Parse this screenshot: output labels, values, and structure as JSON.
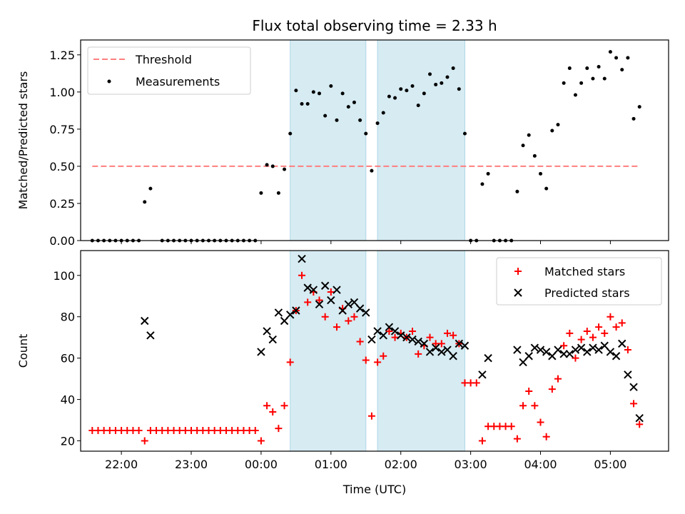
{
  "title": "Flux total observing time = 2.33 h",
  "xlabel": "Time (UTC)",
  "chart_data": [
    {
      "type": "scatter",
      "ylabel": "Matched/Predicted stars",
      "ylim": [
        0,
        1.35
      ],
      "xlim": [
        "21:25",
        "05:50"
      ],
      "yticks": [
        "0.00",
        "0.25",
        "0.50",
        "0.75",
        "1.00",
        "1.25"
      ],
      "legend": {
        "placement": "top-left",
        "entries": [
          "Threshold",
          "Measurements"
        ]
      },
      "threshold": {
        "name": "Threshold",
        "value": 0.5,
        "x_range": [
          "21:35",
          "05:25"
        ],
        "color": "#ff7f7f",
        "style": "dashed"
      },
      "shaded_spans": [
        [
          "00:25",
          "01:30"
        ],
        [
          "01:40",
          "02:55"
        ]
      ],
      "series": [
        {
          "name": "Measurements",
          "color": "#000000",
          "marker": "dot",
          "points": [
            [
              "21:35",
              0
            ],
            [
              "21:40",
              0
            ],
            [
              "21:45",
              0
            ],
            [
              "21:50",
              0
            ],
            [
              "21:55",
              0
            ],
            [
              "22:00",
              0
            ],
            [
              "22:05",
              0
            ],
            [
              "22:10",
              0
            ],
            [
              "22:15",
              0
            ],
            [
              "22:20",
              0.26
            ],
            [
              "22:25",
              0.35
            ],
            [
              "22:35",
              0
            ],
            [
              "22:40",
              0
            ],
            [
              "22:45",
              0
            ],
            [
              "22:50",
              0
            ],
            [
              "22:55",
              0
            ],
            [
              "23:00",
              0
            ],
            [
              "23:05",
              0
            ],
            [
              "23:10",
              0
            ],
            [
              "23:15",
              0
            ],
            [
              "23:20",
              0
            ],
            [
              "23:25",
              0
            ],
            [
              "23:30",
              0
            ],
            [
              "23:35",
              0
            ],
            [
              "23:40",
              0
            ],
            [
              "23:45",
              0
            ],
            [
              "23:50",
              0
            ],
            [
              "23:55",
              0
            ],
            [
              "00:00",
              0.32
            ],
            [
              "00:05",
              0.51
            ],
            [
              "00:10",
              0.5
            ],
            [
              "00:15",
              0.32
            ],
            [
              "00:20",
              0.48
            ],
            [
              "00:25",
              0.72
            ],
            [
              "00:30",
              1.01
            ],
            [
              "00:35",
              0.92
            ],
            [
              "00:40",
              0.92
            ],
            [
              "00:45",
              1.0
            ],
            [
              "00:50",
              0.99
            ],
            [
              "00:55",
              0.84
            ],
            [
              "01:00",
              1.04
            ],
            [
              "01:05",
              0.81
            ],
            [
              "01:10",
              0.99
            ],
            [
              "01:15",
              0.9
            ],
            [
              "01:20",
              0.93
            ],
            [
              "01:25",
              0.81
            ],
            [
              "01:30",
              0.72
            ],
            [
              "01:35",
              0.47
            ],
            [
              "01:40",
              0.79
            ],
            [
              "01:45",
              0.86
            ],
            [
              "01:50",
              0.97
            ],
            [
              "01:55",
              0.96
            ],
            [
              "02:00",
              1.02
            ],
            [
              "02:05",
              1.01
            ],
            [
              "02:10",
              1.04
            ],
            [
              "02:15",
              0.91
            ],
            [
              "02:20",
              0.99
            ],
            [
              "02:25",
              1.12
            ],
            [
              "02:30",
              1.05
            ],
            [
              "02:35",
              1.06
            ],
            [
              "02:40",
              1.1
            ],
            [
              "02:45",
              1.16
            ],
            [
              "02:50",
              1.02
            ],
            [
              "02:55",
              0.72
            ],
            [
              "03:00",
              0
            ],
            [
              "03:05",
              0
            ],
            [
              "03:10",
              0.38
            ],
            [
              "03:15",
              0.45
            ],
            [
              "03:20",
              0
            ],
            [
              "03:25",
              0
            ],
            [
              "03:30",
              0
            ],
            [
              "03:35",
              0
            ],
            [
              "03:40",
              0.33
            ],
            [
              "03:45",
              0.64
            ],
            [
              "03:50",
              0.71
            ],
            [
              "03:55",
              0.57
            ],
            [
              "04:00",
              0.45
            ],
            [
              "04:05",
              0.35
            ],
            [
              "04:10",
              0.74
            ],
            [
              "04:15",
              0.78
            ],
            [
              "04:20",
              1.06
            ],
            [
              "04:25",
              1.16
            ],
            [
              "04:30",
              0.98
            ],
            [
              "04:35",
              1.06
            ],
            [
              "04:40",
              1.16
            ],
            [
              "04:45",
              1.09
            ],
            [
              "04:50",
              1.17
            ],
            [
              "04:55",
              1.09
            ],
            [
              "05:00",
              1.27
            ],
            [
              "05:05",
              1.23
            ],
            [
              "05:10",
              1.15
            ],
            [
              "05:15",
              1.23
            ],
            [
              "05:20",
              0.82
            ],
            [
              "05:25",
              0.9
            ]
          ]
        }
      ]
    },
    {
      "type": "scatter",
      "ylabel": "Count",
      "ylim": [
        15,
        112
      ],
      "xlim": [
        "21:25",
        "05:50"
      ],
      "yticks": [
        "20",
        "40",
        "60",
        "80",
        "100"
      ],
      "xticks": [
        "22:00",
        "23:00",
        "00:00",
        "01:00",
        "02:00",
        "03:00",
        "04:00",
        "05:00"
      ],
      "legend": {
        "placement": "top-right",
        "entries": [
          "Matched stars",
          "Predicted stars"
        ]
      },
      "shaded_spans": [
        [
          "00:25",
          "01:30"
        ],
        [
          "01:40",
          "02:55"
        ]
      ],
      "series": [
        {
          "name": "Matched stars",
          "color": "#ff0000",
          "marker": "plus",
          "points": [
            [
              "21:35",
              25
            ],
            [
              "21:40",
              25
            ],
            [
              "21:45",
              25
            ],
            [
              "21:50",
              25
            ],
            [
              "21:55",
              25
            ],
            [
              "22:00",
              25
            ],
            [
              "22:05",
              25
            ],
            [
              "22:10",
              25
            ],
            [
              "22:15",
              25
            ],
            [
              "22:20",
              20
            ],
            [
              "22:25",
              25
            ],
            [
              "22:30",
              25
            ],
            [
              "22:35",
              25
            ],
            [
              "22:40",
              25
            ],
            [
              "22:45",
              25
            ],
            [
              "22:50",
              25
            ],
            [
              "22:55",
              25
            ],
            [
              "23:00",
              25
            ],
            [
              "23:05",
              25
            ],
            [
              "23:10",
              25
            ],
            [
              "23:15",
              25
            ],
            [
              "23:20",
              25
            ],
            [
              "23:25",
              25
            ],
            [
              "23:30",
              25
            ],
            [
              "23:35",
              25
            ],
            [
              "23:40",
              25
            ],
            [
              "23:45",
              25
            ],
            [
              "23:50",
              25
            ],
            [
              "23:55",
              25
            ],
            [
              "00:00",
              20
            ],
            [
              "00:05",
              37
            ],
            [
              "00:10",
              34
            ],
            [
              "00:15",
              26
            ],
            [
              "00:20",
              37
            ],
            [
              "00:25",
              58
            ],
            [
              "00:30",
              83
            ],
            [
              "00:35",
              100
            ],
            [
              "00:40",
              87
            ],
            [
              "00:45",
              92
            ],
            [
              "00:50",
              88
            ],
            [
              "00:55",
              80
            ],
            [
              "01:00",
              92
            ],
            [
              "01:05",
              75
            ],
            [
              "01:10",
              84
            ],
            [
              "01:15",
              78
            ],
            [
              "01:20",
              80
            ],
            [
              "01:25",
              68
            ],
            [
              "01:30",
              59
            ],
            [
              "01:35",
              32
            ],
            [
              "01:40",
              58
            ],
            [
              "01:45",
              61
            ],
            [
              "01:50",
              73
            ],
            [
              "01:55",
              70
            ],
            [
              "02:00",
              72
            ],
            [
              "02:05",
              70
            ],
            [
              "02:10",
              73
            ],
            [
              "02:15",
              62
            ],
            [
              "02:20",
              66
            ],
            [
              "02:25",
              70
            ],
            [
              "02:30",
              67
            ],
            [
              "02:35",
              67
            ],
            [
              "02:40",
              72
            ],
            [
              "02:45",
              71
            ],
            [
              "02:50",
              67
            ],
            [
              "02:55",
              48
            ],
            [
              "03:00",
              48
            ],
            [
              "03:05",
              48
            ],
            [
              "03:10",
              20
            ],
            [
              "03:15",
              27
            ],
            [
              "03:20",
              27
            ],
            [
              "03:25",
              27
            ],
            [
              "03:30",
              27
            ],
            [
              "03:35",
              27
            ],
            [
              "03:40",
              21
            ],
            [
              "03:45",
              37
            ],
            [
              "03:50",
              44
            ],
            [
              "03:55",
              37
            ],
            [
              "04:00",
              29
            ],
            [
              "04:05",
              22
            ],
            [
              "04:10",
              45
            ],
            [
              "04:15",
              50
            ],
            [
              "04:20",
              66
            ],
            [
              "04:25",
              72
            ],
            [
              "04:30",
              60
            ],
            [
              "04:35",
              69
            ],
            [
              "04:40",
              73
            ],
            [
              "04:45",
              70
            ],
            [
              "04:50",
              75
            ],
            [
              "04:55",
              72
            ],
            [
              "05:00",
              80
            ],
            [
              "05:05",
              75
            ],
            [
              "05:10",
              77
            ],
            [
              "05:15",
              64
            ],
            [
              "05:20",
              38
            ],
            [
              "05:25",
              28
            ]
          ]
        },
        {
          "name": "Predicted stars",
          "color": "#000000",
          "marker": "x",
          "points": [
            [
              "22:20",
              78
            ],
            [
              "22:25",
              71
            ],
            [
              "00:00",
              63
            ],
            [
              "00:05",
              73
            ],
            [
              "00:10",
              69
            ],
            [
              "00:15",
              82
            ],
            [
              "00:20",
              78
            ],
            [
              "00:25",
              81
            ],
            [
              "00:30",
              83
            ],
            [
              "00:35",
              108
            ],
            [
              "00:40",
              94
            ],
            [
              "00:45",
              93
            ],
            [
              "00:50",
              86
            ],
            [
              "00:55",
              95
            ],
            [
              "01:00",
              88
            ],
            [
              "01:05",
              93
            ],
            [
              "01:10",
              83
            ],
            [
              "01:15",
              86
            ],
            [
              "01:20",
              87
            ],
            [
              "01:25",
              84
            ],
            [
              "01:30",
              82
            ],
            [
              "01:35",
              69
            ],
            [
              "01:40",
              73
            ],
            [
              "01:45",
              71
            ],
            [
              "01:50",
              75
            ],
            [
              "01:55",
              73
            ],
            [
              "02:00",
              71
            ],
            [
              "02:05",
              70
            ],
            [
              "02:10",
              69
            ],
            [
              "02:15",
              68
            ],
            [
              "02:20",
              67
            ],
            [
              "02:25",
              63
            ],
            [
              "02:30",
              65
            ],
            [
              "02:35",
              63
            ],
            [
              "02:40",
              64
            ],
            [
              "02:45",
              61
            ],
            [
              "02:50",
              67
            ],
            [
              "02:55",
              66
            ],
            [
              "03:10",
              52
            ],
            [
              "03:15",
              60
            ],
            [
              "03:40",
              64
            ],
            [
              "03:45",
              58
            ],
            [
              "03:50",
              61
            ],
            [
              "03:55",
              65
            ],
            [
              "04:00",
              64
            ],
            [
              "04:05",
              63
            ],
            [
              "04:10",
              61
            ],
            [
              "04:15",
              64
            ],
            [
              "04:20",
              62
            ],
            [
              "04:25",
              62
            ],
            [
              "04:30",
              64
            ],
            [
              "04:35",
              65
            ],
            [
              "04:40",
              63
            ],
            [
              "04:45",
              65
            ],
            [
              "04:50",
              64
            ],
            [
              "04:55",
              66
            ],
            [
              "05:00",
              63
            ],
            [
              "05:05",
              61
            ],
            [
              "05:10",
              67
            ],
            [
              "05:15",
              52
            ],
            [
              "05:20",
              46
            ],
            [
              "05:25",
              31
            ]
          ]
        }
      ]
    }
  ]
}
